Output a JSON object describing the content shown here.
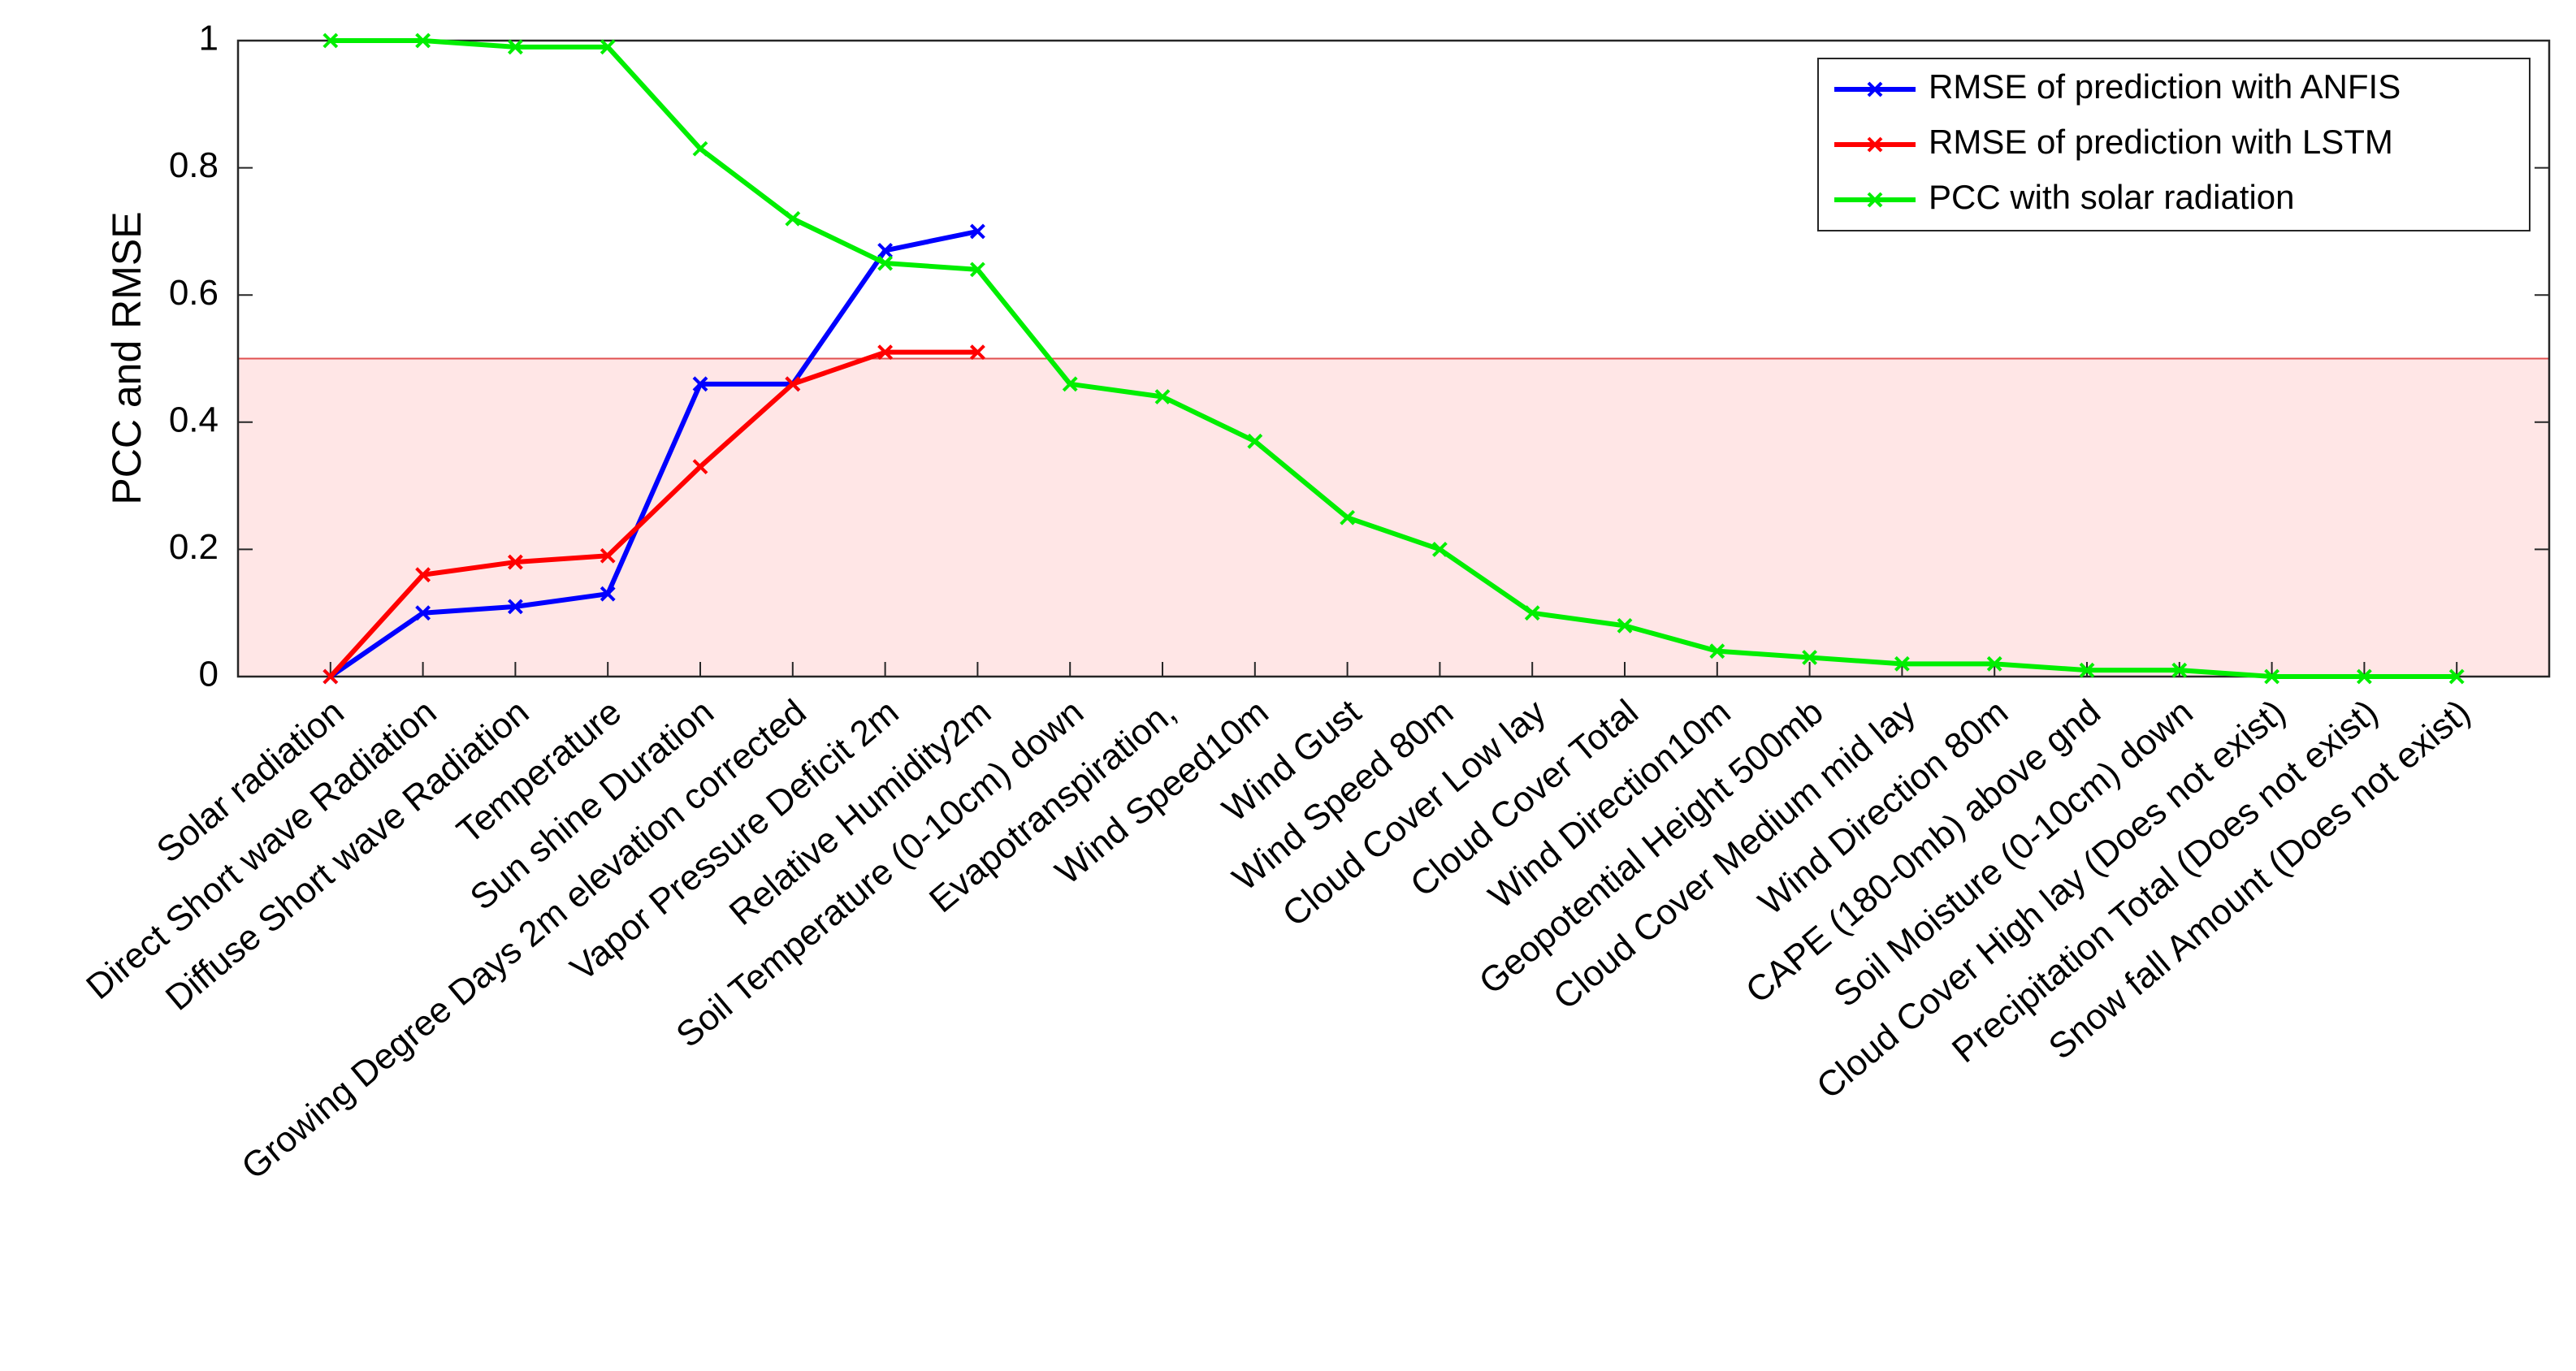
{
  "chart_data": {
    "type": "line",
    "ylabel": "PCC and RMSE",
    "categories": [
      "Solar radiation",
      "Direct Short wave Radiation",
      "Diffuse Short wave Radiation",
      "Temperature",
      "Sun shine Duration",
      "Growing Degree Days 2m elevation corrected",
      "Vapor Pressure Deficit 2m",
      "Relative Humidity2m",
      "Soil Temperature (0-10cm) down",
      "Evapotranspiration,",
      "Wind Speed10m",
      "Wind Gust",
      "Wind Speed 80m",
      "Cloud Cover Low lay",
      "Cloud Cover Total",
      "Wind Direction10m",
      "Geopotential Height 500mb",
      "Cloud Cover Medium mid lay",
      "Wind Direction 80m",
      "CAPE (180-0mb) above gnd",
      "Soil Moisture (0-10cm) down",
      "Cloud Cover High lay (Does not exist)",
      "Precipitation Total (Does not exist)",
      "Snow fall Amount (Does not exist)"
    ],
    "series": [
      {
        "name": "RMSE of prediction with ANFIS",
        "color": "#0000ff",
        "values": [
          0,
          0.1,
          0.11,
          0.13,
          0.46,
          0.46,
          0.67,
          0.7,
          null,
          null,
          null,
          null,
          null,
          null,
          null,
          null,
          null,
          null,
          null,
          null,
          null,
          null,
          null,
          null
        ]
      },
      {
        "name": "RMSE of prediction with LSTM",
        "color": "#ff0000",
        "values": [
          0,
          0.16,
          0.18,
          0.19,
          0.33,
          0.46,
          0.51,
          0.51,
          null,
          null,
          null,
          null,
          null,
          null,
          null,
          null,
          null,
          null,
          null,
          null,
          null,
          null,
          null,
          null
        ]
      },
      {
        "name": "PCC with solar radiation",
        "color": "#00ee00",
        "values": [
          1,
          1,
          0.99,
          0.99,
          0.83,
          0.72,
          0.65,
          0.64,
          0.46,
          0.44,
          0.37,
          0.25,
          0.2,
          0.1,
          0.08,
          0.04,
          0.03,
          0.02,
          0.02,
          0.01,
          0.01,
          0,
          0,
          0
        ]
      }
    ],
    "highlight_band": [
      0,
      0.5
    ],
    "ylim": [
      0,
      1
    ],
    "yticks": [
      0,
      0.2,
      0.4,
      0.6,
      0.8,
      1
    ],
    "legend": "upper right"
  }
}
